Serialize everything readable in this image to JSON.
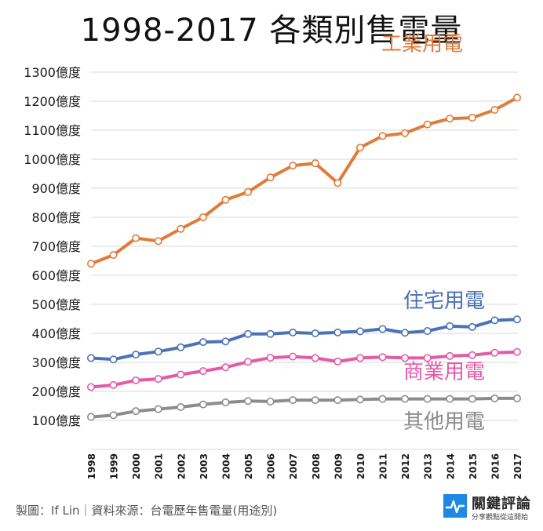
{
  "title": "1998-2017 各類別售電量",
  "footer": {
    "credit": "製圖：If Lin｜資料來源：台電歷年售電量(用途別)"
  },
  "logo": {
    "name": "關鍵評論",
    "tagline": "分享觀點從這開始",
    "icon": "pulse-icon",
    "color": "#1e88e5"
  },
  "chart_data": {
    "type": "line",
    "title": "1998-2017 各類別售電量",
    "x": [
      "1998",
      "1999",
      "2000",
      "2001",
      "2002",
      "2003",
      "2004",
      "2005",
      "2006",
      "2007",
      "2008",
      "2009",
      "2010",
      "2011",
      "2012",
      "2013",
      "2014",
      "2015",
      "2016",
      "2017"
    ],
    "yticks": [
      "100億度",
      "200億度",
      "300億度",
      "400億度",
      "500億度",
      "600億度",
      "700億度",
      "800億度",
      "900億度",
      "1000億度",
      "1100億度",
      "1200億度",
      "1300億度"
    ],
    "ylim": [
      0,
      1300
    ],
    "grid": true,
    "legend": "inline labels at right",
    "series": [
      {
        "name": "工業用電",
        "color": "#e07b39",
        "values": [
          640,
          670,
          728,
          718,
          760,
          800,
          860,
          887,
          937,
          978,
          986,
          918,
          1040,
          1080,
          1090,
          1120,
          1140,
          1143,
          1170,
          1212
        ]
      },
      {
        "name": "住宅用電",
        "color": "#4a72b5",
        "values": [
          315,
          310,
          327,
          337,
          352,
          370,
          372,
          398,
          398,
          403,
          400,
          403,
          407,
          415,
          402,
          408,
          425,
          422,
          445,
          448
        ]
      },
      {
        "name": "商業用電",
        "color": "#e35aa7",
        "values": [
          215,
          222,
          238,
          243,
          258,
          270,
          283,
          302,
          316,
          320,
          315,
          303,
          315,
          318,
          315,
          315,
          322,
          325,
          333,
          336
        ]
      },
      {
        "name": "其他用電",
        "color": "#8c8c8c",
        "values": [
          112,
          118,
          132,
          139,
          146,
          155,
          162,
          167,
          165,
          170,
          170,
          170,
          172,
          174,
          174,
          174,
          174,
          174,
          176,
          176
        ]
      }
    ]
  }
}
